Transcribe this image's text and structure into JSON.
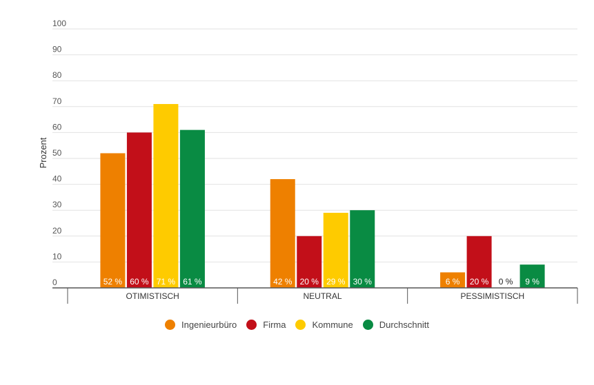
{
  "chart_data": {
    "type": "bar",
    "ylabel": "Prozent",
    "ylim": [
      0,
      100
    ],
    "yticks": [
      0,
      10,
      20,
      30,
      40,
      50,
      60,
      70,
      80,
      90,
      100
    ],
    "categories": [
      "OTIMISTISCH",
      "NEUTRAL",
      "PESSIMISTISCH"
    ],
    "series": [
      {
        "name": "Ingenieurbüro",
        "color": "#ee8000",
        "values": [
          52,
          42,
          6
        ]
      },
      {
        "name": "Firma",
        "color": "#c20f19",
        "values": [
          60,
          20,
          20
        ]
      },
      {
        "name": "Kommune",
        "color": "#fecb00",
        "values": [
          71,
          29,
          0
        ]
      },
      {
        "name": "Durchschnitt",
        "color": "#098b43",
        "values": [
          61,
          30,
          9
        ]
      }
    ],
    "value_suffix": " %",
    "grid": true,
    "legend": "bottom-center"
  }
}
